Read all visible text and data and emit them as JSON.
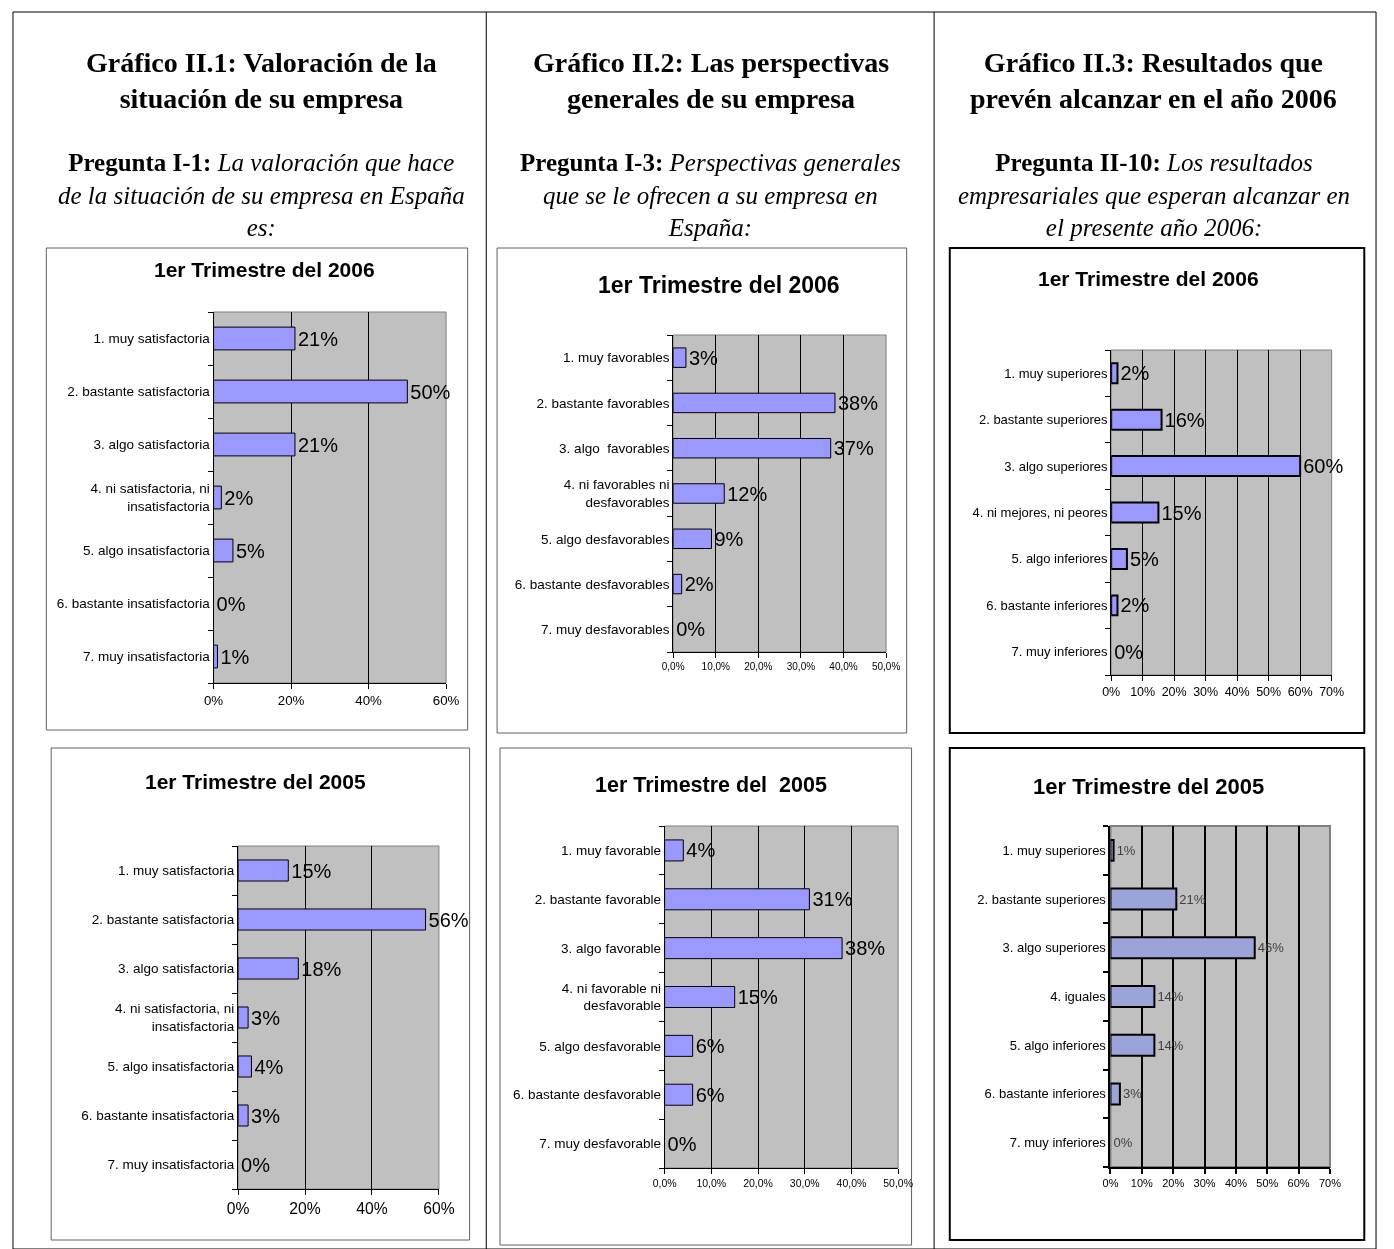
{
  "chart_data": [
    {
      "type": "bar",
      "orientation": "horizontal",
      "title": "1er Trimestre del 2006",
      "annotations": [
        "Gráfico II.1: Valoración de la situación de su empresa",
        "Pregunta I-1: La valoración que hace de la situación de su empresa en España es:"
      ],
      "categories": [
        "1. muy satisfactoria",
        "2. bastante satisfactoria",
        "3. algo satisfactoria",
        "4. ni satisfactoria, ni insatisfactoria",
        "5. algo insatisfactoria",
        "6. bastante insatisfactoria",
        "7. muy insatisfactoria"
      ],
      "values": [
        21,
        50,
        21,
        2,
        5,
        0,
        1
      ],
      "value_labels": [
        "21%",
        "50%",
        "21%",
        "2%",
        "5%",
        "0%",
        "1%"
      ],
      "color": "#9999ff",
      "xlim": [
        0,
        60
      ],
      "xticks": [
        {
          "value": 0,
          "label": "0%"
        },
        {
          "value": 20,
          "label": "20%"
        },
        {
          "value": 40,
          "label": "40%"
        },
        {
          "value": 60,
          "label": "60%"
        }
      ],
      "grid": "x"
    },
    {
      "type": "bar",
      "orientation": "horizontal",
      "title": "1er Trimestre del 2006",
      "annotations": [
        "Gráfico II.2: Las perspectivas generales de su empresa",
        "Pregunta I-3: Perspectivas generales que se le ofrecen a su empresa en España:"
      ],
      "categories": [
        "1. muy favorables",
        "2. bastante favorables",
        "3. algo  favorables",
        "4. ni favorables ni desfavorables",
        "5. algo desfavorables",
        "6. bastante desfavorables",
        "7. muy desfavorables"
      ],
      "values": [
        3,
        38,
        37,
        12,
        9,
        2,
        0
      ],
      "value_labels": [
        "3%",
        "38%",
        "37%",
        "12%",
        "9%",
        "2%",
        "0%"
      ],
      "color": "#9999ff",
      "xlim": [
        0,
        50
      ],
      "xticks": [
        {
          "value": 0,
          "label": "0,0%"
        },
        {
          "value": 10,
          "label": "10,0%"
        },
        {
          "value": 20,
          "label": "20,0%"
        },
        {
          "value": 30,
          "label": "30,0%"
        },
        {
          "value": 40,
          "label": "40,0%"
        },
        {
          "value": 50,
          "label": "50,0%"
        }
      ],
      "grid": "x"
    },
    {
      "type": "bar",
      "orientation": "horizontal",
      "title": "1er Trimestre del 2006",
      "annotations": [
        "Gráfico II.3: Resultados que prevén alcanzar en el año 2006",
        "Pregunta II-10: Los resultados empresariales que esperan alcanzar en el presente año 2006:"
      ],
      "categories": [
        "1. muy superiores",
        "2. bastante superiores",
        "3. algo superiores",
        "4. ni mejores, ni peores",
        "5. algo inferiores",
        "6. bastante inferiores",
        "7. muy inferiores"
      ],
      "values": [
        2,
        16,
        60,
        15,
        5,
        2,
        0
      ],
      "value_labels": [
        "2%",
        "16%",
        "60%",
        "15%",
        "5%",
        "2%",
        "0%"
      ],
      "color": "#9999ff",
      "xlim": [
        0,
        70
      ],
      "xticks": [
        {
          "value": 0,
          "label": "0%"
        },
        {
          "value": 10,
          "label": "10%"
        },
        {
          "value": 20,
          "label": "20%"
        },
        {
          "value": 30,
          "label": "30%"
        },
        {
          "value": 40,
          "label": "40%"
        },
        {
          "value": 50,
          "label": "50%"
        },
        {
          "value": 60,
          "label": "60%"
        },
        {
          "value": 70,
          "label": "70%"
        }
      ],
      "grid": "x"
    },
    {
      "type": "bar",
      "orientation": "horizontal",
      "title": "1er Trimestre del 2005",
      "categories": [
        "1. muy satisfactoria",
        "2. bastante satisfactoria",
        "3. algo satisfactoria",
        "4. ni satisfactoria, ni insatisfactoria",
        "5. algo insatisfactoria",
        "6. bastante insatisfactoria",
        "7. muy insatisfactoria"
      ],
      "values": [
        15,
        56,
        18,
        3,
        4,
        3,
        0
      ],
      "value_labels": [
        "15%",
        "56%",
        "18%",
        "3%",
        "4%",
        "3%",
        "0%"
      ],
      "color": "#9999ff",
      "xlim": [
        0,
        60
      ],
      "xticks": [
        {
          "value": 0,
          "label": "0%"
        },
        {
          "value": 20,
          "label": "20%"
        },
        {
          "value": 40,
          "label": "40%"
        },
        {
          "value": 60,
          "label": "60%"
        }
      ],
      "grid": "x"
    },
    {
      "type": "bar",
      "orientation": "horizontal",
      "title": "1er Trimestre del  2005",
      "categories": [
        "1. muy favorable",
        "2. bastante favorable",
        "3. algo favorable",
        "4. ni favorable ni desfavorable",
        "5. algo desfavorable",
        "6. bastante desfavorable",
        "7. muy desfavorable"
      ],
      "values": [
        4,
        31,
        38,
        15,
        6,
        6,
        0
      ],
      "value_labels": [
        "4%",
        "31%",
        "38%",
        "15%",
        "6%",
        "6%",
        "0%"
      ],
      "color": "#9999ff",
      "xlim": [
        0,
        50
      ],
      "xticks": [
        {
          "value": 0,
          "label": "0,0%"
        },
        {
          "value": 10,
          "label": "10,0%"
        },
        {
          "value": 20,
          "label": "20,0%"
        },
        {
          "value": 30,
          "label": "30,0%"
        },
        {
          "value": 40,
          "label": "40,0%"
        },
        {
          "value": 50,
          "label": "50,0%"
        }
      ],
      "grid": "x"
    },
    {
      "type": "bar",
      "orientation": "horizontal",
      "title": "1er Trimestre del 2005",
      "categories": [
        "1. muy superiores",
        "2. bastante superiores",
        "3. algo superiores",
        "4. iguales",
        "5. algo inferiores",
        "6. bastante inferiores",
        "7. muy inferiores"
      ],
      "values": [
        1,
        21,
        46,
        14,
        14,
        3,
        0
      ],
      "value_labels": [
        "1%",
        "21%",
        "46%",
        "14%",
        "14%",
        "3%",
        "0%"
      ],
      "color": "#9aa4d8",
      "xlim": [
        0,
        70
      ],
      "xticks": [
        {
          "value": 0,
          "label": "0%"
        },
        {
          "value": 10,
          "label": "10%"
        },
        {
          "value": 20,
          "label": "20%"
        },
        {
          "value": 30,
          "label": "30%"
        },
        {
          "value": 40,
          "label": "40%"
        },
        {
          "value": 50,
          "label": "50%"
        },
        {
          "value": 60,
          "label": "60%"
        },
        {
          "value": 70,
          "label": "70%"
        }
      ],
      "grid": "x"
    }
  ]
}
